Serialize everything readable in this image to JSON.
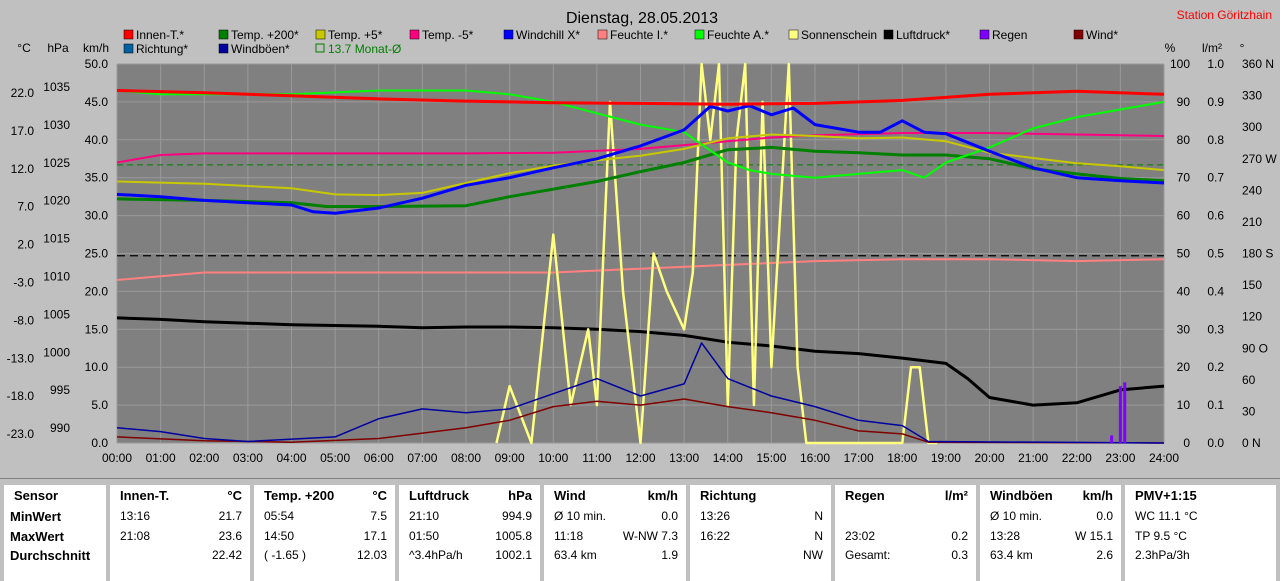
{
  "chart_data": {
    "type": "line",
    "title": "Dienstag, 28.05.2013",
    "station": "Station Göritzhain",
    "left_axis_headers": [
      "°C",
      "hPa",
      "km/h"
    ],
    "right_axis_headers": [
      "%",
      "l/m²",
      "°"
    ],
    "axes": {
      "temp_ticks": [
        "22.0",
        "17.0",
        "12.0",
        "7.0",
        "2.0",
        "-3.0",
        "-8.0",
        "-13.0",
        "-18.0",
        "-23.0"
      ],
      "pressure_ticks": [
        "1035",
        "1030",
        "1025",
        "1020",
        "1015",
        "1010",
        "1005",
        "1000",
        "995",
        "990"
      ],
      "wind_ticks": [
        "50.0",
        "45.0",
        "40.0",
        "35.0",
        "30.0",
        "25.0",
        "20.0",
        "15.0",
        "10.0",
        "5.0",
        "0.0"
      ],
      "humidity_ticks": [
        "100",
        "90",
        "80",
        "70",
        "60",
        "50",
        "40",
        "30",
        "20",
        "10",
        "0"
      ],
      "rain_ticks": [
        "1.0",
        "0.9",
        "0.8",
        "0.7",
        "0.6",
        "0.5",
        "0.4",
        "0.3",
        "0.2",
        "0.1",
        "0.0"
      ],
      "direction_ticks": [
        "360 N",
        "330",
        "300",
        "270 W",
        "240",
        "210",
        "180 S",
        "150",
        "120",
        "90 O",
        "60",
        "30",
        "0 N"
      ],
      "x_ticks": [
        "00:00",
        "01:00",
        "02:00",
        "03:00",
        "04:00",
        "05:00",
        "06:00",
        "07:00",
        "08:00",
        "09:00",
        "10:00",
        "11:00",
        "12:00",
        "13:00",
        "14:00",
        "15:00",
        "16:00",
        "17:00",
        "18:00",
        "19:00",
        "20:00",
        "21:00",
        "22:00",
        "23:00",
        "24:00"
      ],
      "temp_range": [
        -23.0,
        27.0
      ],
      "grid": true
    },
    "legend": [
      {
        "name": "Innen-T.*",
        "color": "#ff0000"
      },
      {
        "name": "Temp. +200*",
        "color": "#008000"
      },
      {
        "name": "Temp. +5*",
        "color": "#c8c800"
      },
      {
        "name": "Temp. -5*",
        "color": "#ff0080"
      },
      {
        "name": "Windchill X*",
        "color": "#0000ff"
      },
      {
        "name": "Feuchte I.*",
        "color": "#ff8080"
      },
      {
        "name": "Feuchte A.*",
        "color": "#00ff00"
      },
      {
        "name": "Sonnenschein",
        "color": "#ffff80"
      },
      {
        "name": "Luftdruck*",
        "color": "#000000"
      },
      {
        "name": "Regen",
        "color": "#8000ff"
      },
      {
        "name": "Wind*",
        "color": "#800000"
      },
      {
        "name": "Richtung*",
        "color": "#0060a0"
      },
      {
        "name": "Windböen*",
        "color": "#0000a0"
      },
      {
        "name": "13.7 Monat-Ø",
        "color": "#008000"
      }
    ],
    "series": [
      {
        "name": "Innen-T.*",
        "unit": "°C",
        "x": [
          0,
          2,
          4,
          6,
          8,
          10,
          12,
          14,
          16,
          18,
          19,
          20,
          22,
          24
        ],
        "values": [
          23.5,
          23.2,
          22.8,
          22.4,
          22.1,
          21.9,
          21.8,
          21.7,
          21.8,
          22.2,
          22.6,
          23.0,
          23.4,
          23.0
        ]
      },
      {
        "name": "Temp. +200*",
        "unit": "°C",
        "x": [
          0,
          2,
          4,
          4.8,
          6,
          8,
          9,
          10,
          11,
          12,
          13,
          14,
          15,
          16,
          17,
          18,
          19,
          20,
          21,
          22,
          23,
          24
        ],
        "values": [
          9.2,
          9.0,
          8.7,
          8.2,
          8.2,
          8.3,
          9.5,
          10.5,
          11.5,
          12.8,
          14.0,
          15.7,
          16.0,
          15.5,
          15.3,
          15.0,
          15.0,
          14.5,
          13.2,
          12.5,
          11.9,
          11.6
        ]
      },
      {
        "name": "Temp. +5*",
        "unit": "°C",
        "x": [
          0,
          2,
          4,
          5,
          6,
          7,
          8,
          9,
          10,
          11,
          12,
          13,
          14,
          15,
          16,
          17,
          18,
          19,
          20,
          21,
          22,
          23,
          24
        ],
        "values": [
          11.5,
          11.2,
          10.6,
          9.8,
          9.7,
          10.0,
          11.3,
          12.6,
          13.6,
          14.3,
          14.9,
          15.8,
          17.2,
          17.7,
          17.5,
          17.2,
          17.3,
          16.8,
          15.3,
          14.6,
          13.9,
          13.5,
          13.0
        ]
      },
      {
        "name": "Temp. -5*",
        "unit": "°C",
        "x": [
          0,
          1,
          2,
          4,
          6,
          8,
          10,
          12,
          13,
          14,
          15,
          16,
          18,
          20,
          22,
          24
        ],
        "values": [
          14.0,
          15.0,
          15.2,
          15.2,
          15.2,
          15.2,
          15.3,
          15.8,
          16.3,
          16.8,
          17.3,
          17.6,
          17.9,
          17.9,
          17.7,
          17.5
        ]
      },
      {
        "name": "Windchill X*",
        "unit": "°C",
        "x": [
          0,
          1,
          2,
          3,
          4,
          4.5,
          5,
          6,
          7,
          8,
          9,
          10,
          11,
          12,
          13,
          13.6,
          14,
          14.5,
          15,
          15.5,
          16,
          17,
          17.5,
          18,
          18.5,
          19,
          20,
          21,
          22,
          23,
          24
        ],
        "values": [
          9.8,
          9.5,
          9.0,
          8.7,
          8.4,
          7.5,
          7.3,
          8.0,
          9.3,
          11.0,
          12.0,
          13.3,
          14.5,
          16.2,
          18.3,
          21.4,
          20.8,
          21.5,
          20.3,
          21.2,
          19.0,
          18.0,
          18.0,
          19.5,
          18.0,
          17.8,
          15.5,
          13.3,
          12.0,
          11.6,
          11.3
        ]
      },
      {
        "name": "Feuchte I.*",
        "unit": "%",
        "x": [
          0,
          1,
          2,
          4,
          6,
          8,
          10,
          12,
          14,
          16,
          18,
          20,
          22,
          24
        ],
        "values": [
          43,
          44,
          45,
          45,
          45,
          45,
          45,
          46,
          47,
          48,
          48.5,
          48.5,
          48,
          48.5
        ]
      },
      {
        "name": "Feuchte A.*",
        "unit": "%",
        "x": [
          0,
          1,
          2,
          4,
          6,
          8,
          9,
          10,
          11,
          12,
          13,
          13.5,
          14,
          14.5,
          15,
          16,
          17,
          18,
          18.5,
          19,
          20,
          21,
          22,
          23,
          24
        ],
        "values": [
          93,
          92,
          92,
          92,
          93,
          93,
          92,
          90,
          87,
          84,
          82,
          78,
          74,
          72,
          71,
          70,
          71,
          72,
          70,
          74,
          78,
          83,
          86,
          88,
          90
        ]
      },
      {
        "name": "Sonnenschein",
        "unit": "%",
        "x": [
          8.7,
          9,
          9.5,
          10,
          10.4,
          10.8,
          11,
          11.3,
          11.6,
          12,
          12.3,
          12.6,
          13,
          13.2,
          13.4,
          13.6,
          13.8,
          14,
          14.2,
          14.4,
          14.6,
          14.8,
          15,
          15.2,
          15.4,
          15.6,
          15.8,
          16,
          18,
          18.2,
          18.4,
          18.6,
          18.8
        ],
        "values": [
          0,
          15,
          0,
          55,
          10,
          30,
          10,
          90,
          40,
          0,
          50,
          40,
          30,
          45,
          100,
          80,
          100,
          10,
          80,
          100,
          10,
          90,
          20,
          60,
          100,
          20,
          0,
          0,
          0,
          20,
          20,
          0,
          0
        ]
      },
      {
        "name": "Luftdruck*",
        "unit": "hPa",
        "x": [
          0,
          1,
          2,
          3,
          4,
          5,
          6,
          7,
          8,
          9,
          10,
          11,
          12,
          13,
          14,
          15,
          16,
          17,
          18,
          19,
          19.5,
          20,
          21,
          22,
          23,
          24
        ],
        "values": [
          1006.5,
          1006.3,
          1006.0,
          1005.8,
          1005.6,
          1005.5,
          1005.4,
          1005.2,
          1005.3,
          1005.3,
          1005.2,
          1005.0,
          1004.7,
          1004.2,
          1003.3,
          1002.8,
          1002.1,
          1001.8,
          1001.2,
          1000.5,
          998.5,
          996.0,
          995.0,
          995.3,
          997.0,
          997.5
        ]
      },
      {
        "name": "Wind*",
        "unit": "km/h",
        "x": [
          0,
          2,
          4,
          6,
          8,
          9,
          10,
          11,
          12,
          13,
          14,
          15,
          16,
          17,
          18,
          18.6,
          24
        ],
        "values": [
          0.8,
          0.3,
          0.1,
          0.6,
          2.0,
          3.0,
          4.8,
          5.5,
          5.0,
          5.8,
          4.8,
          4.0,
          3.0,
          1.6,
          1.2,
          0.1,
          0
        ]
      },
      {
        "name": "Windböen*",
        "unit": "km/h",
        "x": [
          0,
          1,
          2,
          3,
          5,
          6,
          7,
          8,
          9,
          10,
          11,
          12,
          13,
          13.4,
          14,
          15,
          16,
          17,
          18,
          18.6,
          24
        ],
        "values": [
          2.0,
          1.5,
          0.6,
          0.2,
          0.8,
          3.2,
          4.5,
          4.0,
          4.5,
          6.5,
          8.5,
          6.2,
          7.8,
          13.2,
          8.5,
          6.2,
          4.8,
          3.0,
          2.3,
          0.2,
          0
        ]
      },
      {
        "name": "Regen",
        "unit": "l/m²",
        "x": [
          22.8,
          23.0,
          23.1
        ],
        "values": [
          0.02,
          0.15,
          0.16
        ]
      }
    ],
    "month_average": 13.7,
    "reference_line_kmh": 24.7
  },
  "summary": {
    "columns": [
      {
        "name": "Sensor",
        "unit": "",
        "rows": [
          [
            "MinWert",
            ""
          ],
          [
            "MaxWert",
            ""
          ],
          [
            "Durchschnitt",
            ""
          ]
        ]
      },
      {
        "name": "Innen-T.",
        "unit": "°C",
        "rows": [
          [
            "13:16",
            "21.7"
          ],
          [
            "21:08",
            "23.6"
          ],
          [
            "",
            "22.42"
          ]
        ]
      },
      {
        "name": "Temp. +200",
        "unit": "°C",
        "rows": [
          [
            "05:54",
            "7.5"
          ],
          [
            "14:50",
            "17.1"
          ],
          [
            "( -1.65 )",
            "12.03"
          ]
        ]
      },
      {
        "name": "Luftdruck",
        "unit": "hPa",
        "rows": [
          [
            "21:10",
            "994.9"
          ],
          [
            "01:50",
            "1005.8"
          ],
          [
            "^3.4hPa/h",
            "1002.1"
          ]
        ]
      },
      {
        "name": "Wind",
        "unit": "km/h",
        "rows": [
          [
            "Ø 10 min.",
            "0.0"
          ],
          [
            "11:18",
            "W-NW 7.3"
          ],
          [
            "63.4 km",
            "1.9"
          ]
        ]
      },
      {
        "name": "Richtung",
        "unit": "",
        "rows": [
          [
            "13:26",
            "N"
          ],
          [
            "16:22",
            "N"
          ],
          [
            "",
            "NW"
          ]
        ]
      },
      {
        "name": "Regen",
        "unit": "l/m²",
        "rows": [
          [
            "",
            ""
          ],
          [
            "23:02",
            "0.2"
          ],
          [
            "Gesamt:",
            "0.3"
          ]
        ]
      },
      {
        "name": "Windböen",
        "unit": "km/h",
        "rows": [
          [
            "Ø 10 min.",
            "0.0"
          ],
          [
            "13:28",
            "W 15.1"
          ],
          [
            "63.4 km",
            "2.6"
          ]
        ]
      },
      {
        "name": "PMV+1:15",
        "unit": "",
        "rows": [
          [
            "WC 11.1 °C",
            ""
          ],
          [
            "TP 9.5 °C",
            ""
          ],
          [
            "2.3hPa/3h",
            ""
          ]
        ]
      }
    ]
  }
}
